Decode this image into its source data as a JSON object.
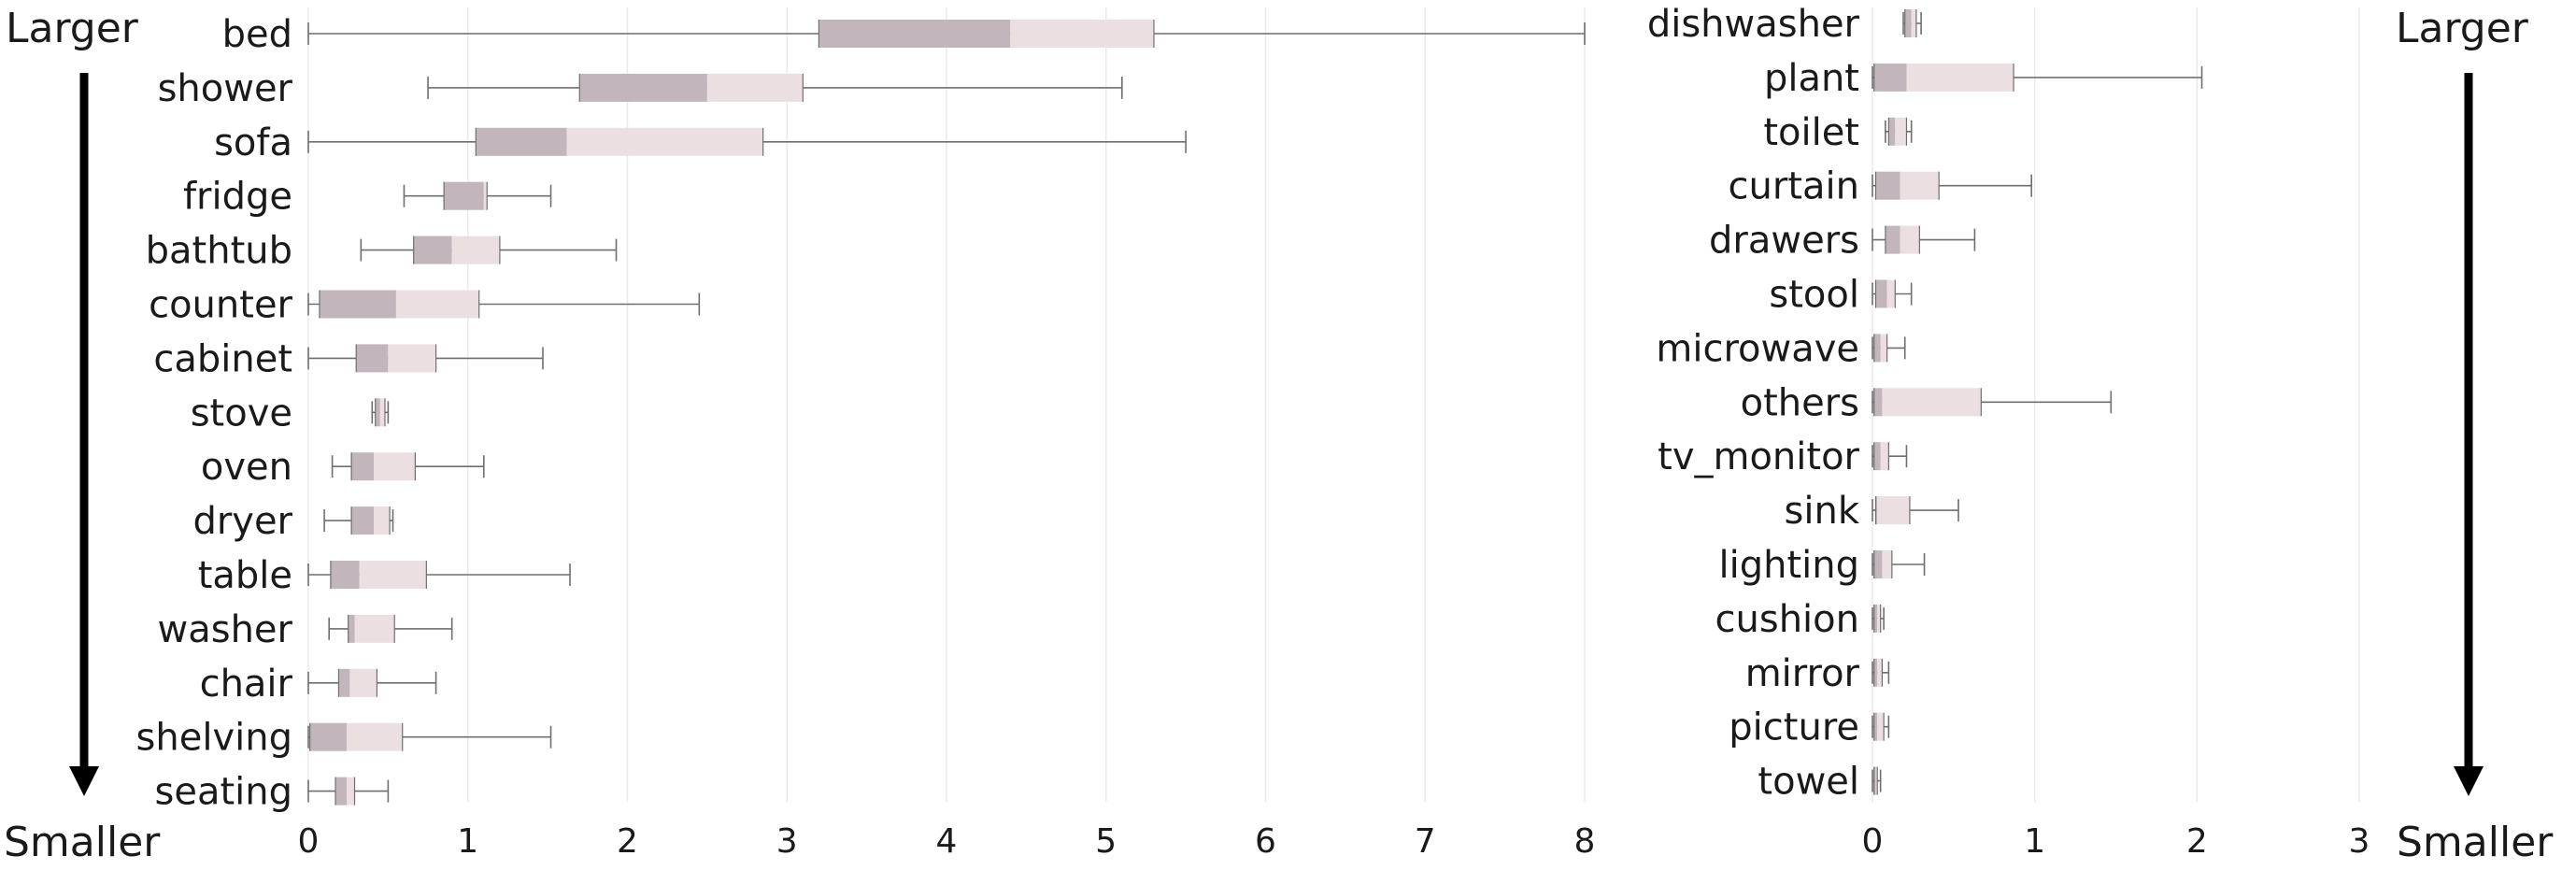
{
  "side_labels": {
    "left_top": "Larger",
    "left_bottom": "Smaller",
    "right_top": "Larger",
    "right_bottom": "Smaller"
  },
  "colors": {
    "q1_box": "#c2b5bb",
    "q3_box": "#ecdfe2",
    "whisker": "#6f6f6f",
    "grid": "#ebebeb",
    "arrow": "#000000",
    "text": "#1a1a1a"
  },
  "chart_data": [
    {
      "type": "box",
      "xlim": [
        0,
        8
      ],
      "xticks": [
        0,
        1,
        2,
        3,
        4,
        5,
        6,
        7,
        8
      ],
      "grid": true,
      "categories": [
        "bed",
        "shower",
        "sofa",
        "fridge",
        "bathtub",
        "counter",
        "cabinet",
        "stove",
        "oven",
        "dryer",
        "table",
        "washer",
        "chair",
        "shelving",
        "seating"
      ],
      "boxes": [
        {
          "min": 0.0,
          "q1": 3.2,
          "median": 4.4,
          "q3": 5.3,
          "max": 8.0
        },
        {
          "min": 0.75,
          "q1": 1.7,
          "median": 2.5,
          "q3": 3.1,
          "max": 5.1
        },
        {
          "min": 0.0,
          "q1": 1.05,
          "median": 1.62,
          "q3": 2.85,
          "max": 5.5
        },
        {
          "min": 0.6,
          "q1": 0.85,
          "median": 1.1,
          "q3": 1.12,
          "max": 1.52
        },
        {
          "min": 0.33,
          "q1": 0.66,
          "median": 0.9,
          "q3": 1.2,
          "max": 1.93
        },
        {
          "min": 0.0,
          "q1": 0.07,
          "median": 0.55,
          "q3": 1.07,
          "max": 2.45
        },
        {
          "min": 0.0,
          "q1": 0.3,
          "median": 0.5,
          "q3": 0.8,
          "max": 1.47
        },
        {
          "min": 0.4,
          "q1": 0.42,
          "median": 0.45,
          "q3": 0.48,
          "max": 0.5
        },
        {
          "min": 0.15,
          "q1": 0.27,
          "median": 0.41,
          "q3": 0.67,
          "max": 1.1
        },
        {
          "min": 0.1,
          "q1": 0.27,
          "median": 0.41,
          "q3": 0.51,
          "max": 0.53
        },
        {
          "min": 0.0,
          "q1": 0.14,
          "median": 0.32,
          "q3": 0.74,
          "max": 1.64
        },
        {
          "min": 0.13,
          "q1": 0.25,
          "median": 0.29,
          "q3": 0.54,
          "max": 0.9
        },
        {
          "min": 0.0,
          "q1": 0.19,
          "median": 0.26,
          "q3": 0.43,
          "max": 0.8
        },
        {
          "min": 0.0,
          "q1": 0.01,
          "median": 0.24,
          "q3": 0.59,
          "max": 1.52
        },
        {
          "min": 0.0,
          "q1": 0.17,
          "median": 0.24,
          "q3": 0.29,
          "max": 0.5
        }
      ]
    },
    {
      "type": "box",
      "xlim": [
        0,
        3
      ],
      "xticks": [
        0,
        1,
        2,
        3
      ],
      "grid": true,
      "categories": [
        "dishwasher",
        "plant",
        "toilet",
        "curtain",
        "drawers",
        "stool",
        "microwave",
        "others",
        "tv_monitor",
        "sink",
        "lighting",
        "cushion",
        "mirror",
        "picture",
        "towel"
      ],
      "boxes": [
        {
          "min": 0.19,
          "q1": 0.2,
          "median": 0.24,
          "q3": 0.27,
          "max": 0.3
        },
        {
          "min": 0.0,
          "q1": 0.01,
          "median": 0.21,
          "q3": 0.87,
          "max": 2.03
        },
        {
          "min": 0.08,
          "q1": 0.1,
          "median": 0.14,
          "q3": 0.21,
          "max": 0.24
        },
        {
          "min": 0.0,
          "q1": 0.02,
          "median": 0.17,
          "q3": 0.41,
          "max": 0.98
        },
        {
          "min": 0.0,
          "q1": 0.08,
          "median": 0.17,
          "q3": 0.29,
          "max": 0.63
        },
        {
          "min": 0.0,
          "q1": 0.02,
          "median": 0.09,
          "q3": 0.14,
          "max": 0.24
        },
        {
          "min": 0.0,
          "q1": 0.01,
          "median": 0.05,
          "q3": 0.09,
          "max": 0.2
        },
        {
          "min": 0.0,
          "q1": 0.01,
          "median": 0.06,
          "q3": 0.67,
          "max": 1.47
        },
        {
          "min": 0.0,
          "q1": 0.01,
          "median": 0.05,
          "q3": 0.1,
          "max": 0.21
        },
        {
          "min": 0.0,
          "q1": 0.02,
          "median": 0.03,
          "q3": 0.23,
          "max": 0.53
        },
        {
          "min": 0.0,
          "q1": 0.01,
          "median": 0.06,
          "q3": 0.12,
          "max": 0.32
        },
        {
          "min": 0.0,
          "q1": 0.01,
          "median": 0.03,
          "q3": 0.05,
          "max": 0.07
        },
        {
          "min": 0.0,
          "q1": 0.01,
          "median": 0.03,
          "q3": 0.06,
          "max": 0.1
        },
        {
          "min": 0.0,
          "q1": 0.01,
          "median": 0.03,
          "q3": 0.07,
          "max": 0.1
        },
        {
          "min": 0.0,
          "q1": 0.01,
          "median": 0.02,
          "q3": 0.03,
          "max": 0.05
        }
      ]
    }
  ]
}
